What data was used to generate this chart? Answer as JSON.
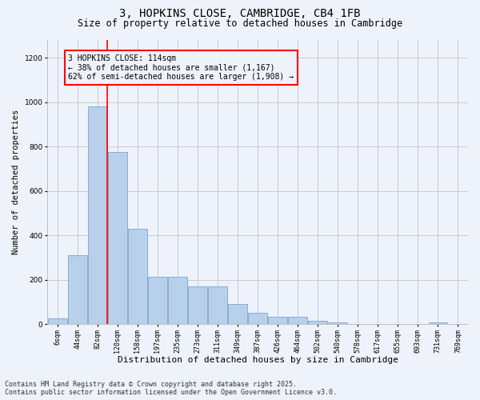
{
  "title": "3, HOPKINS CLOSE, CAMBRIDGE, CB4 1FB",
  "subtitle": "Size of property relative to detached houses in Cambridge",
  "xlabel": "Distribution of detached houses by size in Cambridge",
  "ylabel": "Number of detached properties",
  "categories": [
    "6sqm",
    "44sqm",
    "82sqm",
    "120sqm",
    "158sqm",
    "197sqm",
    "235sqm",
    "273sqm",
    "311sqm",
    "349sqm",
    "387sqm",
    "426sqm",
    "464sqm",
    "502sqm",
    "540sqm",
    "578sqm",
    "617sqm",
    "655sqm",
    "693sqm",
    "731sqm",
    "769sqm"
  ],
  "values": [
    25,
    310,
    980,
    775,
    430,
    215,
    215,
    170,
    170,
    90,
    50,
    35,
    35,
    15,
    10,
    0,
    0,
    0,
    0,
    10,
    0
  ],
  "bar_color": "#b8d0ea",
  "bar_edge_color": "#6699cc",
  "bar_edge_width": 0.5,
  "vline_index": 2.5,
  "vline_color": "red",
  "vline_linewidth": 1.2,
  "annotation_text": "3 HOPKINS CLOSE: 114sqm\n← 38% of detached houses are smaller (1,167)\n62% of semi-detached houses are larger (1,908) →",
  "ylim": [
    0,
    1280
  ],
  "yticks": [
    0,
    200,
    400,
    600,
    800,
    1000,
    1200
  ],
  "grid_color": "#cccccc",
  "background_color": "#eef2fa",
  "footer_line1": "Contains HM Land Registry data © Crown copyright and database right 2025.",
  "footer_line2": "Contains public sector information licensed under the Open Government Licence v3.0.",
  "title_fontsize": 10,
  "subtitle_fontsize": 8.5,
  "tick_fontsize": 6,
  "ylabel_fontsize": 7.5,
  "xlabel_fontsize": 8,
  "annotation_fontsize": 7,
  "footer_fontsize": 6
}
